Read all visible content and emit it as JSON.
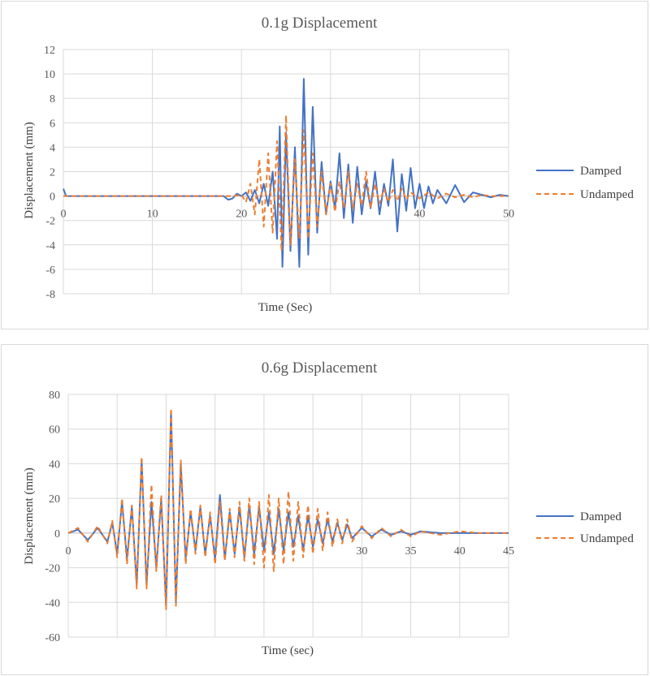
{
  "colors": {
    "damped": "#4472c4",
    "undamped": "#ed7d31",
    "grid": "#d9d9d9",
    "text": "#595959"
  },
  "chart_data": [
    {
      "type": "line",
      "title": "0.1g Displacement",
      "xlabel": "Time (Sec)",
      "ylabel": "Displacement (mm)",
      "xlim": [
        0,
        50
      ],
      "ylim": [
        -8,
        12
      ],
      "xticks": [
        0,
        10,
        20,
        30,
        40,
        50
      ],
      "xtick_labels": [
        "0",
        "10",
        "20",
        "",
        "40",
        "50"
      ],
      "yticks": [
        -8,
        -6,
        -4,
        -2,
        0,
        2,
        4,
        6,
        8,
        10,
        12
      ],
      "ytick_labels": [
        "-8",
        "-6",
        "-4",
        "-2",
        "0",
        "2",
        "4",
        "6",
        "8",
        "10",
        "12"
      ],
      "grid": true,
      "legend": "right",
      "series": [
        {
          "name": "Damped",
          "style": "solid",
          "x": [
            0,
            0.3,
            1,
            5,
            10,
            15,
            18,
            18.5,
            19,
            19.5,
            20,
            20.5,
            21,
            21.5,
            22,
            22.5,
            23,
            23.5,
            24,
            24.3,
            24.6,
            25,
            25.5,
            26,
            26.5,
            27,
            27.5,
            28,
            28.5,
            29,
            29.5,
            30,
            30.5,
            31,
            31.5,
            32,
            32.5,
            33,
            33.5,
            34,
            34.5,
            35,
            35.5,
            36,
            36.5,
            37,
            37.5,
            38,
            38.5,
            39,
            39.5,
            40,
            40.5,
            41,
            41.5,
            42,
            43,
            44,
            45,
            46,
            47,
            48,
            49,
            50
          ],
          "y": [
            0.6,
            0,
            0,
            0,
            0,
            0,
            0,
            -0.3,
            -0.2,
            0.2,
            0,
            0.3,
            -0.4,
            0.5,
            -0.6,
            1.0,
            -0.8,
            2.0,
            -3.5,
            5.7,
            -5.8,
            5.2,
            -4.5,
            4.0,
            -5.8,
            9.6,
            -4.8,
            7.3,
            -3.0,
            2.8,
            -1.5,
            1.2,
            -1.0,
            3.5,
            -1.8,
            2.6,
            -2.2,
            2.4,
            -1.5,
            1.2,
            -1.0,
            2.0,
            -1.5,
            1.0,
            -0.8,
            3.0,
            -2.9,
            1.8,
            -1.2,
            2.3,
            -1.0,
            1.0,
            -1.0,
            0.8,
            -0.6,
            0.5,
            -0.6,
            0.9,
            -0.5,
            0.3,
            0.1,
            -0.1,
            0.1,
            0
          ]
        },
        {
          "name": "Undamped",
          "style": "dashed",
          "x": [
            0,
            5,
            10,
            15,
            19,
            20,
            20.5,
            21,
            21.5,
            22,
            22.5,
            23,
            23.5,
            24,
            24.5,
            25,
            25.5,
            26,
            26.5,
            27,
            27.5,
            28,
            28.5,
            29,
            29.5,
            30,
            30.5,
            31,
            31.5,
            32,
            32.5,
            33,
            33.5,
            34,
            34.5,
            35,
            35.5,
            36,
            36.5,
            37,
            37.5,
            38,
            38.5,
            39,
            40,
            41,
            42,
            43,
            44,
            45,
            46,
            47,
            48,
            49,
            50
          ],
          "y": [
            0,
            0,
            0,
            0,
            0,
            0.1,
            -0.5,
            1.0,
            -1.5,
            3.0,
            -2.5,
            3.5,
            -3.0,
            4.5,
            -4.5,
            6.6,
            -4.0,
            3.0,
            -3.5,
            5.4,
            -3.5,
            3.5,
            -2.5,
            2.0,
            -1.5,
            1.0,
            -1.3,
            1.2,
            -1.0,
            2.0,
            -1.0,
            1.0,
            -0.8,
            2.0,
            -1.0,
            1.0,
            -0.6,
            0.6,
            -0.5,
            0.5,
            -0.4,
            0.6,
            -0.3,
            0.3,
            -0.2,
            0.3,
            -0.2,
            0.2,
            -0.1,
            0.1,
            -0.1,
            0.1,
            0,
            0,
            0
          ]
        }
      ]
    },
    {
      "type": "line",
      "title": "0.6g Displacement",
      "xlabel": "Time (sec)",
      "ylabel": "Displacement (mm)",
      "xlim": [
        0,
        45
      ],
      "ylim": [
        -60,
        80
      ],
      "xticks": [
        0,
        5,
        10,
        15,
        20,
        25,
        30,
        35,
        40,
        45
      ],
      "xtick_labels": [
        "0",
        "",
        "",
        "",
        "",
        "",
        "30",
        "35",
        "40",
        "45"
      ],
      "yticks": [
        -60,
        -40,
        -20,
        0,
        20,
        40,
        60,
        80
      ],
      "ytick_labels": [
        "-60",
        "-40",
        "-20",
        "0",
        "20",
        "40",
        "60",
        "80"
      ],
      "grid": true,
      "legend": "right",
      "series": [
        {
          "name": "Damped",
          "style": "solid",
          "x": [
            0,
            1,
            2,
            3,
            4,
            4.5,
            5,
            5.5,
            6,
            6.5,
            7,
            7.5,
            8,
            8.5,
            9,
            9.5,
            10,
            10.5,
            11,
            11.5,
            12,
            12.5,
            13,
            13.5,
            14,
            14.5,
            15,
            15.5,
            16,
            16.5,
            17,
            17.5,
            18,
            18.5,
            19,
            19.5,
            20,
            20.5,
            21,
            21.5,
            22,
            22.5,
            23,
            23.5,
            24,
            24.5,
            25,
            25.5,
            26,
            26.5,
            27,
            27.5,
            28,
            28.5,
            29,
            30,
            31,
            32,
            33,
            34,
            35,
            36,
            38,
            40,
            42,
            44,
            45
          ],
          "y": [
            0,
            2,
            -4,
            3,
            -5,
            6,
            -12,
            18,
            -15,
            15,
            -30,
            42,
            -30,
            18,
            -20,
            20,
            -42,
            70,
            -40,
            40,
            -15,
            12,
            -10,
            15,
            -12,
            10,
            -15,
            22,
            -15,
            12,
            -12,
            15,
            -14,
            16,
            -12,
            15,
            -10,
            12,
            -12,
            14,
            -10,
            12,
            -8,
            10,
            -10,
            10,
            -8,
            8,
            -6,
            8,
            -5,
            6,
            -4,
            5,
            -3,
            3,
            -2,
            2,
            -1,
            1,
            -1,
            1,
            0,
            0,
            0,
            0,
            0
          ]
        },
        {
          "name": "Undamped",
          "style": "dashed",
          "x": [
            0,
            1,
            2,
            3,
            4,
            4.5,
            5,
            5.5,
            6,
            6.5,
            7,
            7.5,
            8,
            8.5,
            9,
            9.5,
            10,
            10.5,
            11,
            11.5,
            12,
            12.5,
            13,
            13.5,
            14,
            14.5,
            15,
            15.5,
            16,
            16.5,
            17,
            17.5,
            18,
            18.5,
            19,
            19.5,
            20,
            20.5,
            21,
            21.5,
            22,
            22.5,
            23,
            23.5,
            24,
            24.5,
            25,
            25.5,
            26,
            26.5,
            27,
            27.5,
            28,
            28.5,
            29,
            30,
            31,
            32,
            33,
            34,
            35,
            36,
            38,
            40,
            42,
            44,
            45
          ],
          "y": [
            0,
            3,
            -5,
            4,
            -6,
            7,
            -14,
            20,
            -18,
            16,
            -32,
            44,
            -32,
            28,
            -22,
            22,
            -44,
            72,
            -42,
            42,
            -18,
            14,
            -12,
            16,
            -14,
            12,
            -18,
            18,
            -16,
            14,
            -14,
            18,
            -16,
            20,
            -18,
            18,
            -20,
            22,
            -22,
            20,
            -18,
            24,
            -16,
            18,
            -14,
            16,
            -12,
            14,
            -10,
            12,
            -8,
            8,
            -6,
            8,
            -5,
            4,
            -3,
            3,
            -2,
            2,
            -2,
            1,
            -1,
            1,
            0,
            0,
            0
          ]
        }
      ]
    }
  ]
}
